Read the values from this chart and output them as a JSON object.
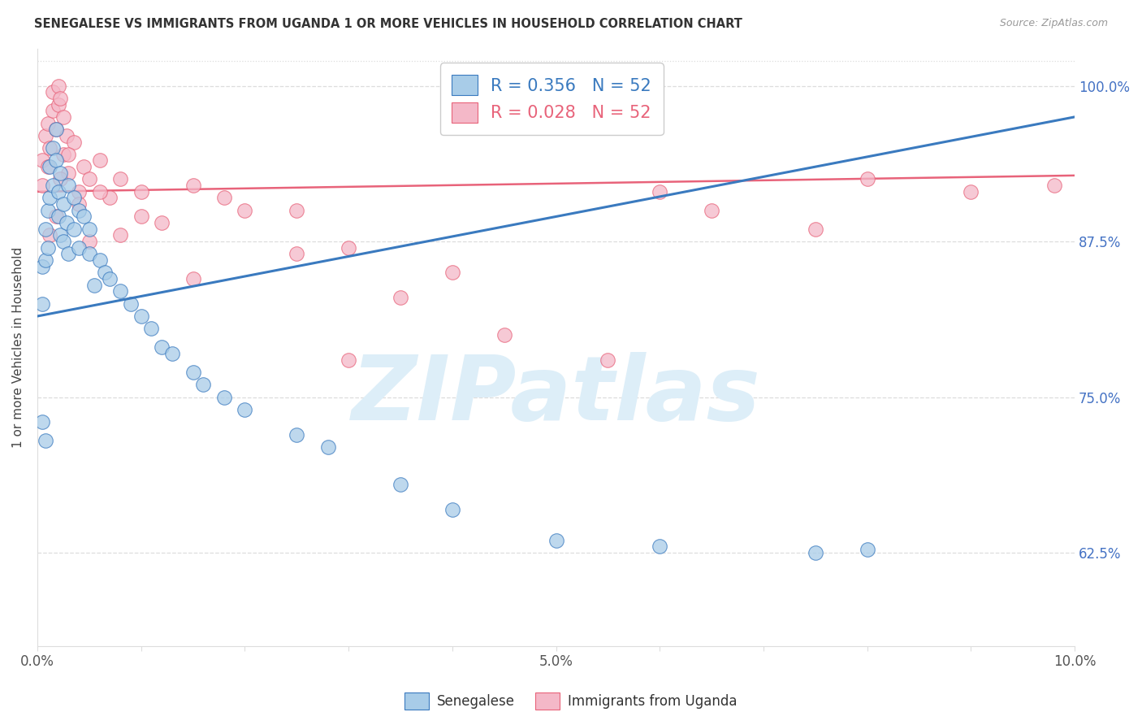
{
  "title": "SENEGALESE VS IMMIGRANTS FROM UGANDA 1 OR MORE VEHICLES IN HOUSEHOLD CORRELATION CHART",
  "source": "Source: ZipAtlas.com",
  "ylabel": "1 or more Vehicles in Household",
  "xlim": [
    0.0,
    10.0
  ],
  "ylim": [
    55.0,
    103.0
  ],
  "xtick_positions": [
    0,
    1,
    2,
    3,
    4,
    5,
    6,
    7,
    8,
    9,
    10
  ],
  "xtick_labels": [
    "0.0%",
    "",
    "",
    "",
    "",
    "5.0%",
    "",
    "",
    "",
    "",
    "10.0%"
  ],
  "ytick_positions": [
    62.5,
    75.0,
    87.5,
    100.0
  ],
  "ytick_labels": [
    "62.5%",
    "75.0%",
    "87.5%",
    "100.0%"
  ],
  "legend_label1": "Senegalese",
  "legend_label2": "Immigrants from Uganda",
  "R1": 0.356,
  "N1": 52,
  "R2": 0.028,
  "N2": 52,
  "color1": "#a8cce8",
  "color2": "#f4b8c8",
  "trendline1_color": "#3a7abf",
  "trendline2_color": "#e8637a",
  "blue_x": [
    0.05,
    0.05,
    0.08,
    0.08,
    0.1,
    0.1,
    0.12,
    0.12,
    0.15,
    0.15,
    0.18,
    0.18,
    0.2,
    0.2,
    0.22,
    0.22,
    0.25,
    0.25,
    0.28,
    0.3,
    0.3,
    0.35,
    0.35,
    0.4,
    0.4,
    0.45,
    0.5,
    0.5,
    0.55,
    0.6,
    0.65,
    0.7,
    0.8,
    0.9,
    1.0,
    1.1,
    1.2,
    1.3,
    1.5,
    1.6,
    1.8,
    2.0,
    2.5,
    2.8,
    3.5,
    4.0,
    5.0,
    6.0,
    7.5,
    8.0,
    0.05,
    0.08
  ],
  "blue_y": [
    82.5,
    85.5,
    86.0,
    88.5,
    87.0,
    90.0,
    91.0,
    93.5,
    92.0,
    95.0,
    94.0,
    96.5,
    89.5,
    91.5,
    93.0,
    88.0,
    87.5,
    90.5,
    89.0,
    86.5,
    92.0,
    88.5,
    91.0,
    87.0,
    90.0,
    89.5,
    86.5,
    88.5,
    84.0,
    86.0,
    85.0,
    84.5,
    83.5,
    82.5,
    81.5,
    80.5,
    79.0,
    78.5,
    77.0,
    76.0,
    75.0,
    74.0,
    72.0,
    71.0,
    68.0,
    66.0,
    63.5,
    63.0,
    62.5,
    62.8,
    73.0,
    71.5
  ],
  "pink_x": [
    0.05,
    0.05,
    0.08,
    0.1,
    0.1,
    0.12,
    0.15,
    0.15,
    0.18,
    0.2,
    0.2,
    0.22,
    0.25,
    0.25,
    0.28,
    0.3,
    0.35,
    0.4,
    0.45,
    0.5,
    0.6,
    0.7,
    0.8,
    1.0,
    1.2,
    1.5,
    1.8,
    2.0,
    2.5,
    3.0,
    3.5,
    4.0,
    4.5,
    5.5,
    6.0,
    6.5,
    7.5,
    8.0,
    9.0,
    9.8,
    0.12,
    0.18,
    0.22,
    0.3,
    0.4,
    0.5,
    0.6,
    0.8,
    1.0,
    1.5,
    2.5,
    3.0
  ],
  "pink_y": [
    92.0,
    94.0,
    96.0,
    93.5,
    97.0,
    95.0,
    98.0,
    99.5,
    96.5,
    98.5,
    100.0,
    99.0,
    97.5,
    94.5,
    96.0,
    93.0,
    95.5,
    91.5,
    93.5,
    92.5,
    94.0,
    91.0,
    92.5,
    91.5,
    89.0,
    92.0,
    91.0,
    90.0,
    86.5,
    87.0,
    83.0,
    85.0,
    80.0,
    78.0,
    91.5,
    90.0,
    88.5,
    92.5,
    91.5,
    92.0,
    88.0,
    89.5,
    92.5,
    94.5,
    90.5,
    87.5,
    91.5,
    88.0,
    89.5,
    84.5,
    90.0,
    78.0
  ],
  "trendline1_x0": 0.0,
  "trendline1_y0": 81.5,
  "trendline1_x1": 10.0,
  "trendline1_y1": 97.5,
  "trendline2_x0": 0.0,
  "trendline2_y0": 91.5,
  "trendline2_x1": 10.0,
  "trendline2_y1": 92.8,
  "watermark_text": "ZIPatlas",
  "watermark_color": "#ddeef8",
  "grid_color": "#dddddd",
  "axis_tick_color": "#555555",
  "right_tick_color": "#4472c4"
}
